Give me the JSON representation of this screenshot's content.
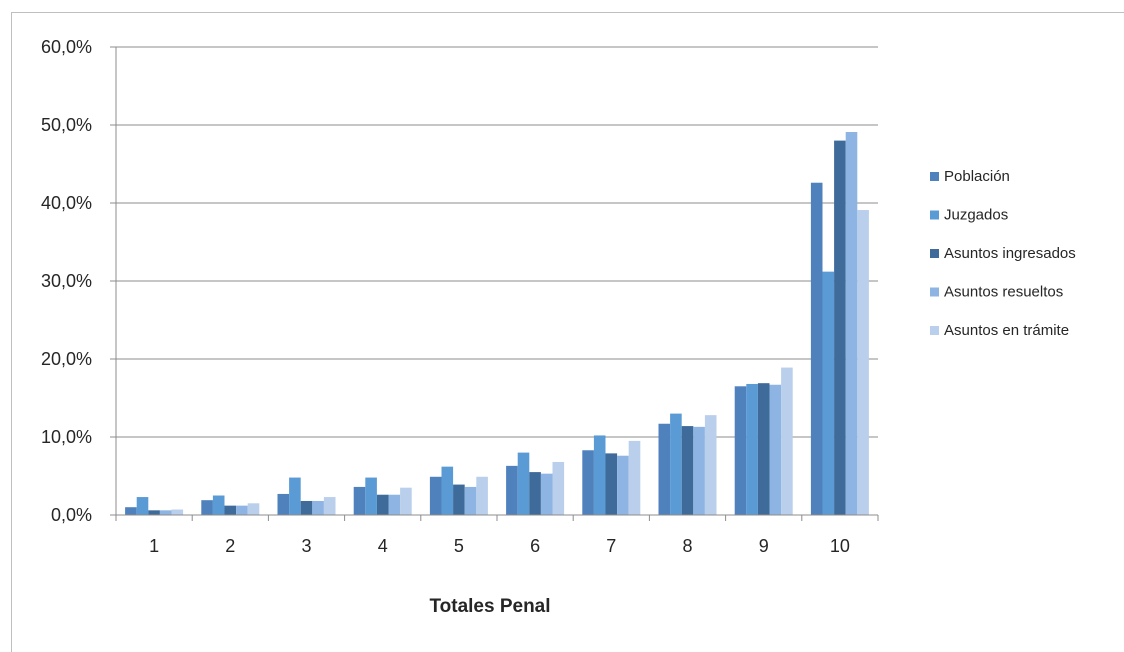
{
  "chart_data": {
    "type": "bar",
    "title": "",
    "xlabel": "Totales Penal",
    "ylabel": "",
    "categories": [
      "1",
      "2",
      "3",
      "4",
      "5",
      "6",
      "7",
      "8",
      "9",
      "10"
    ],
    "ylim": [
      0,
      60
    ],
    "y_ticks": [
      "0,0%",
      "10,0%",
      "20,0%",
      "30,0%",
      "40,0%",
      "50,0%",
      "60,0%"
    ],
    "grid": true,
    "legend_position": "right",
    "series": [
      {
        "name": "Población",
        "color": "#4f81bd",
        "values": [
          1.0,
          1.9,
          2.7,
          3.6,
          4.9,
          6.3,
          8.3,
          11.7,
          16.5,
          42.6
        ]
      },
      {
        "name": "Juzgados",
        "color": "#5b9bd5",
        "values": [
          2.3,
          2.5,
          4.8,
          4.8,
          6.2,
          8.0,
          10.2,
          13.0,
          16.8,
          31.2
        ]
      },
      {
        "name": "Asuntos ingresados",
        "color": "#3e6b9a",
        "values": [
          0.6,
          1.2,
          1.8,
          2.6,
          3.9,
          5.5,
          7.9,
          11.4,
          16.9,
          48.0
        ]
      },
      {
        "name": "Asuntos resueltos",
        "color": "#8eb4e3",
        "values": [
          0.6,
          1.2,
          1.8,
          2.6,
          3.6,
          5.3,
          7.6,
          11.3,
          16.7,
          49.1
        ]
      },
      {
        "name": "Asuntos en trámite",
        "color": "#b9cfeb",
        "values": [
          0.7,
          1.5,
          2.3,
          3.5,
          4.9,
          6.8,
          9.5,
          12.8,
          18.9,
          39.1
        ]
      }
    ]
  }
}
